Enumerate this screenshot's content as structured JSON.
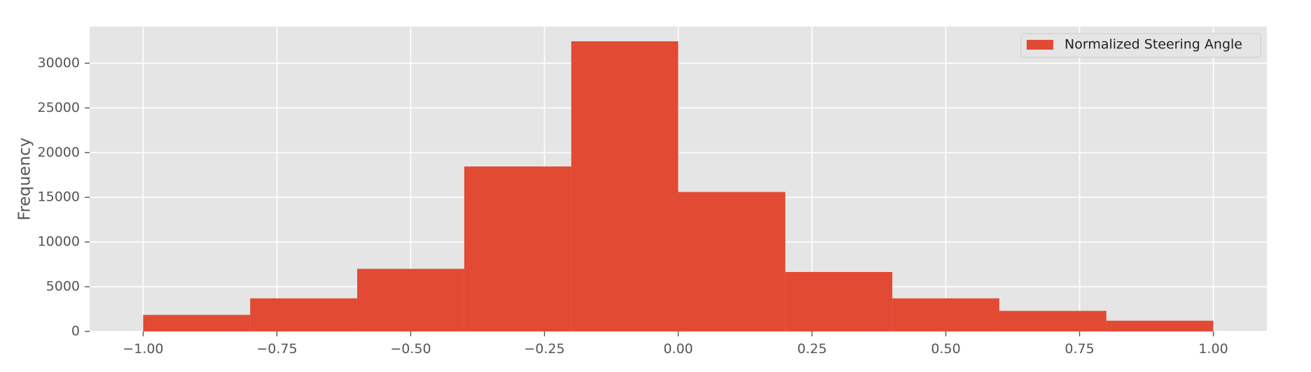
{
  "chart_data": {
    "type": "bar",
    "subtype": "histogram",
    "title": "",
    "xlabel": "",
    "ylabel": "Frequency",
    "xlim": [
      -1.1,
      1.1
    ],
    "ylim": [
      0,
      34100
    ],
    "grid": true,
    "legend_position": "top-right",
    "bin_edges": [
      -1.0,
      -0.8,
      -0.6,
      -0.4,
      -0.2,
      0.0,
      0.2,
      0.4,
      0.6,
      0.8,
      1.0
    ],
    "series": [
      {
        "name": "Normalized Steering Angle",
        "color": "#E24A33",
        "values": [
          1850,
          3700,
          7000,
          18450,
          32450,
          15600,
          6650,
          3700,
          2300,
          1200
        ]
      }
    ],
    "x_ticks": [
      {
        "value": -1.0,
        "label": "−1.00"
      },
      {
        "value": -0.75,
        "label": "−0.75"
      },
      {
        "value": -0.5,
        "label": "−0.50"
      },
      {
        "value": -0.25,
        "label": "−0.25"
      },
      {
        "value": 0.0,
        "label": "0.00"
      },
      {
        "value": 0.25,
        "label": "0.25"
      },
      {
        "value": 0.5,
        "label": "0.50"
      },
      {
        "value": 0.75,
        "label": "0.75"
      },
      {
        "value": 1.0,
        "label": "1.00"
      }
    ],
    "y_ticks": [
      {
        "value": 0,
        "label": "0"
      },
      {
        "value": 5000,
        "label": "5000"
      },
      {
        "value": 10000,
        "label": "10000"
      },
      {
        "value": 15000,
        "label": "15000"
      },
      {
        "value": 20000,
        "label": "20000"
      },
      {
        "value": 25000,
        "label": "25000"
      },
      {
        "value": 30000,
        "label": "30000"
      }
    ],
    "colors": {
      "plot_background": "#E5E5E5",
      "grid": "#FFFFFF",
      "tick": "#555555"
    }
  }
}
